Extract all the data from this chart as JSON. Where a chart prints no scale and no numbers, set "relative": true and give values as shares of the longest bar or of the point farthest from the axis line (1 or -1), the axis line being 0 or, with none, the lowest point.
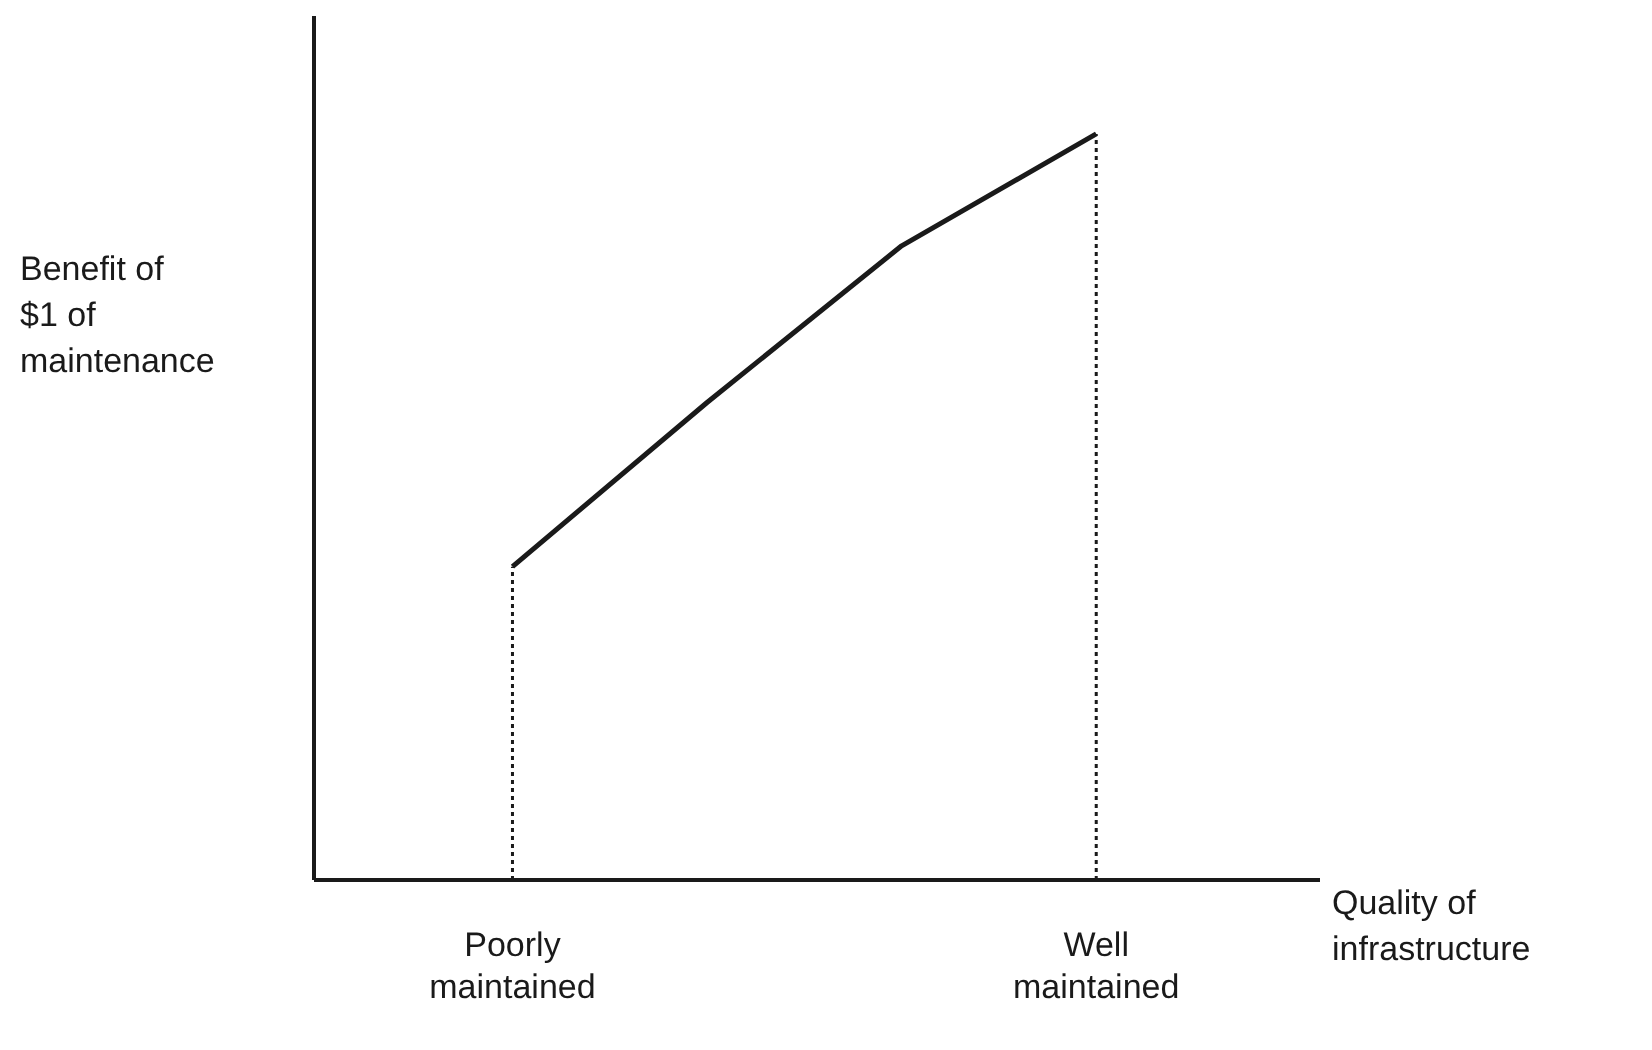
{
  "chart_data": {
    "type": "line",
    "relative": true,
    "ylabel": "Benefit of\n$1 of\nmaintenance",
    "xlabel": "Quality of\ninfrastructure",
    "categories": [
      "Poorly maintained",
      null,
      null,
      "Well maintained"
    ],
    "series": [
      {
        "color": "#1a1a1a",
        "values": [
          0.42,
          0.64,
          0.85,
          1
        ]
      }
    ],
    "ref_lines": [
      {
        "axis": "x",
        "value": "Poorly maintained",
        "line_style": "dotted",
        "color": "#1a1a1a"
      },
      {
        "axis": "x",
        "value": "Well maintained",
        "line_style": "dotted",
        "color": "#1a1a1a"
      }
    ],
    "marker": "none",
    "line_style": "solid"
  }
}
